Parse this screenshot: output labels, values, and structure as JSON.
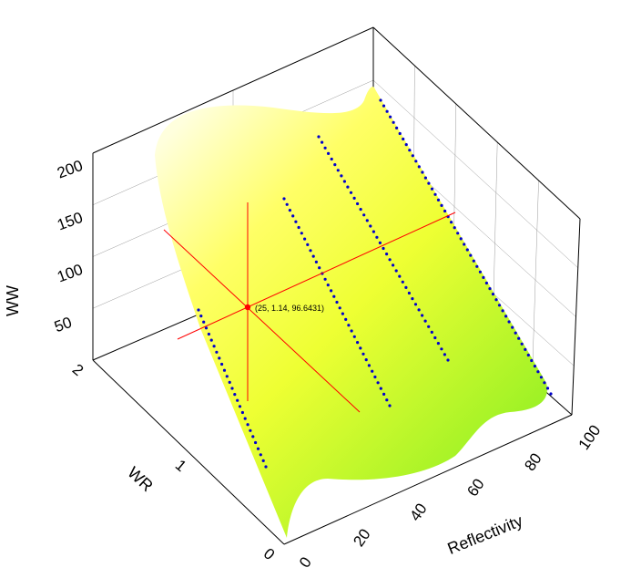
{
  "chart_data": {
    "type": "surface3d",
    "axes": {
      "x": {
        "label": "Reflectivity",
        "ticks": [
          "0",
          "20",
          "40",
          "60",
          "80",
          "100"
        ],
        "range": [
          0,
          100
        ]
      },
      "y": {
        "label": "WR",
        "ticks": [
          "0",
          "1",
          "2"
        ],
        "range": [
          0,
          2
        ]
      },
      "z": {
        "label": "WW",
        "ticks": [
          "50",
          "100",
          "150",
          "200"
        ],
        "range": [
          0,
          220
        ]
      }
    },
    "surface": {
      "colors": {
        "low": "#88ee22",
        "mid": "#ffff33",
        "high": "#ffffdd"
      },
      "gridlines": true
    },
    "scatter_series": {
      "color": "#0000cc",
      "x": [
        0,
        20,
        40,
        60,
        80,
        100
      ],
      "y_range": [
        0,
        2
      ]
    },
    "cursor": {
      "x": 25,
      "y": 1.14,
      "z": 96.6431,
      "label": "(25, 1.14, 96.6431)",
      "color": "#ff0000"
    }
  }
}
